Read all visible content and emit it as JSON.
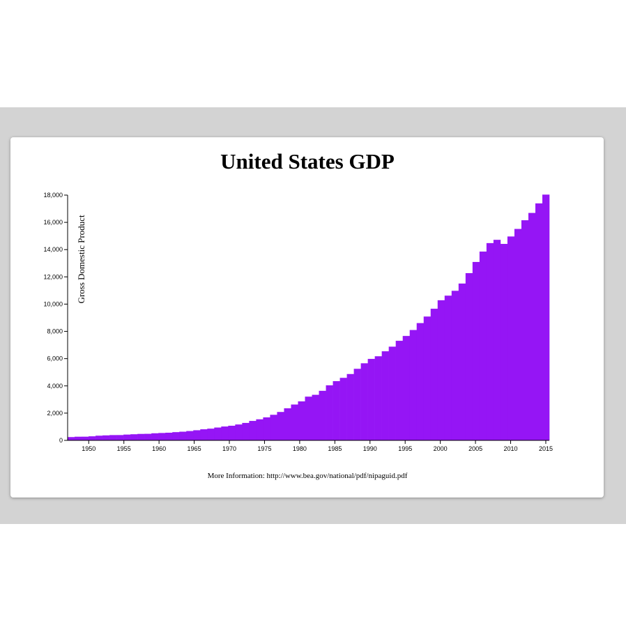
{
  "page": {
    "title": "United States GDP",
    "info": "More Information: http://www.bea.gov/national/pdf/nipaguid.pdf"
  },
  "colors": {
    "bar": "#9515f5",
    "band": "#d3d3d3",
    "card": "#ffffff"
  },
  "chart_data": {
    "type": "bar",
    "title": "United States GDP",
    "ylabel": "Gross Domestic Product",
    "xlabel": "",
    "x_range": [
      1947.0,
      2015.5
    ],
    "ylim": [
      0,
      18000
    ],
    "yticks": [
      0,
      2000,
      4000,
      6000,
      8000,
      10000,
      12000,
      14000,
      16000,
      18000
    ],
    "ytick_labels": [
      "0",
      "2,000",
      "4,000",
      "6,000",
      "8,000",
      "10,000",
      "12,000",
      "14,000",
      "16,000",
      "18,000"
    ],
    "xticks": [
      1950,
      1955,
      1960,
      1965,
      1970,
      1975,
      1980,
      1985,
      1990,
      1995,
      2000,
      2005,
      2010,
      2015
    ],
    "xtick_labels": [
      "1950",
      "1955",
      "1960",
      "1965",
      "1970",
      "1975",
      "1980",
      "1985",
      "1990",
      "1995",
      "2000",
      "2005",
      "2010",
      "2015"
    ],
    "grid": false,
    "legend": "none",
    "x": [
      1947,
      1948,
      1949,
      1950,
      1951,
      1952,
      1953,
      1954,
      1955,
      1956,
      1957,
      1958,
      1959,
      1960,
      1961,
      1962,
      1963,
      1964,
      1965,
      1966,
      1967,
      1968,
      1969,
      1970,
      1971,
      1972,
      1973,
      1974,
      1975,
      1976,
      1977,
      1978,
      1979,
      1980,
      1981,
      1982,
      1983,
      1984,
      1985,
      1986,
      1987,
      1988,
      1989,
      1990,
      1991,
      1992,
      1993,
      1994,
      1995,
      1996,
      1997,
      1998,
      1999,
      2000,
      2001,
      2002,
      2003,
      2004,
      2005,
      2006,
      2007,
      2008,
      2009,
      2010,
      2011,
      2012,
      2013,
      2014,
      2015
    ],
    "series": [
      {
        "values": [
          243,
          270,
          272,
          300,
          345,
          367,
          389,
          391,
          426,
          450,
          475,
          482,
          522,
          543,
          563,
          605,
          638,
          686,
          744,
          815,
          862,
          943,
          1019,
          1075,
          1168,
          1282,
          1429,
          1548,
          1689,
          1878,
          2086,
          2357,
          2632,
          2862,
          3211,
          3345,
          3638,
          4041,
          4347,
          4590,
          4870,
          5253,
          5658,
          5980,
          6174,
          6539,
          6879,
          7309,
          7664,
          8100,
          8609,
          9089,
          9661,
          10285,
          10622,
          10978,
          11511,
          12275,
          13094,
          13856,
          14478,
          14719,
          14419,
          14964,
          15518,
          16155,
          16692,
          17393,
          18037
        ]
      }
    ]
  }
}
